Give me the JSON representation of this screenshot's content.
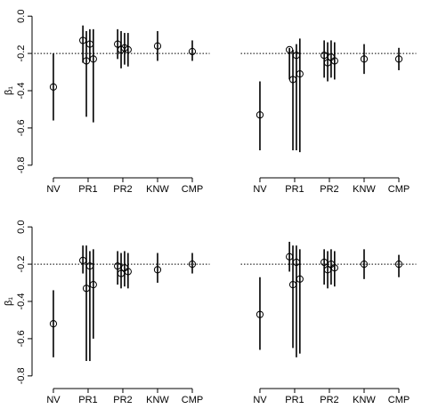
{
  "chart_data": [
    {
      "type": "scatter",
      "ylabel": "β₁",
      "x": [
        1,
        1.85,
        1.95,
        2.05,
        2.15,
        2.85,
        2.95,
        3.05,
        3.15,
        4,
        5
      ],
      "y": [
        -0.38,
        -0.13,
        -0.24,
        -0.15,
        -0.23,
        -0.15,
        -0.18,
        -0.17,
        -0.18,
        -0.16,
        -0.19
      ],
      "low": [
        -0.56,
        -0.25,
        -0.54,
        -0.24,
        -0.57,
        -0.23,
        -0.28,
        -0.26,
        -0.27,
        -0.24,
        -0.24
      ],
      "high": [
        -0.2,
        -0.05,
        -0.08,
        -0.07,
        -0.07,
        -0.07,
        -0.08,
        -0.09,
        -0.09,
        -0.08,
        -0.13
      ],
      "xlim": [
        0.45,
        5.5
      ],
      "xticks": [
        {
          "value": 1,
          "label": "NV"
        },
        {
          "value": 2,
          "label": "PR1"
        },
        {
          "value": 3,
          "label": "PR2"
        },
        {
          "value": 4,
          "label": "KNW"
        },
        {
          "value": 5,
          "label": "CMP"
        }
      ],
      "ylim": [
        -0.82,
        0.02
      ],
      "yticks": [
        {
          "value": 0,
          "label": "0.0"
        },
        -0.2,
        -0.4,
        -0.6,
        -0.8
      ],
      "hline": -0.2
    },
    {
      "type": "scatter",
      "x": [
        1,
        1.85,
        1.95,
        2.05,
        2.15,
        2.85,
        2.95,
        3.05,
        3.15,
        4,
        5
      ],
      "y": [
        -0.53,
        -0.18,
        -0.34,
        -0.21,
        -0.31,
        -0.21,
        -0.25,
        -0.22,
        -0.24,
        -0.23,
        -0.23
      ],
      "low": [
        -0.72,
        -0.34,
        -0.72,
        -0.72,
        -0.73,
        -0.33,
        -0.35,
        -0.33,
        -0.34,
        -0.31,
        -0.29
      ],
      "high": [
        -0.35,
        -0.17,
        -0.18,
        -0.15,
        -0.12,
        -0.13,
        -0.14,
        -0.13,
        -0.14,
        -0.15,
        -0.17
      ],
      "xlim": [
        0.45,
        5.5
      ],
      "xticks": [
        {
          "value": 1,
          "label": "NV"
        },
        {
          "value": 2,
          "label": "PR1"
        },
        {
          "value": 3,
          "label": "PR2"
        },
        {
          "value": 4,
          "label": "KNW"
        },
        {
          "value": 5,
          "label": "CMP"
        }
      ],
      "ylim": [
        -0.82,
        0.02
      ],
      "hline": -0.2
    },
    {
      "type": "scatter",
      "ylabel": "β₁",
      "x": [
        1,
        1.85,
        1.95,
        2.05,
        2.15,
        2.85,
        2.95,
        3.05,
        3.15,
        4,
        5
      ],
      "y": [
        -0.52,
        -0.18,
        -0.33,
        -0.21,
        -0.31,
        -0.21,
        -0.25,
        -0.22,
        -0.24,
        -0.23,
        -0.2
      ],
      "low": [
        -0.7,
        -0.25,
        -0.72,
        -0.72,
        -0.6,
        -0.31,
        -0.33,
        -0.32,
        -0.33,
        -0.3,
        -0.25
      ],
      "high": [
        -0.34,
        -0.1,
        -0.1,
        -0.13,
        -0.12,
        -0.13,
        -0.14,
        -0.13,
        -0.14,
        -0.14,
        -0.14
      ],
      "xlim": [
        0.45,
        5.5
      ],
      "xticks": [
        {
          "value": 1,
          "label": "NV"
        },
        {
          "value": 2,
          "label": "PR1"
        },
        {
          "value": 3,
          "label": "PR2"
        },
        {
          "value": 4,
          "label": "KNW"
        },
        {
          "value": 5,
          "label": "CMP"
        }
      ],
      "ylim": [
        -0.82,
        0.02
      ],
      "yticks": [
        {
          "value": 0,
          "label": "0.0"
        },
        -0.2,
        -0.4,
        -0.6,
        -0.8
      ],
      "hline": -0.2
    },
    {
      "type": "scatter",
      "x": [
        1,
        1.85,
        1.95,
        2.05,
        2.15,
        2.85,
        2.95,
        3.05,
        3.15,
        4,
        5
      ],
      "y": [
        -0.47,
        -0.16,
        -0.31,
        -0.19,
        -0.28,
        -0.19,
        -0.23,
        -0.2,
        -0.22,
        -0.2,
        -0.2
      ],
      "low": [
        -0.66,
        -0.24,
        -0.65,
        -0.7,
        -0.68,
        -0.31,
        -0.33,
        -0.31,
        -0.32,
        -0.28,
        -0.27
      ],
      "high": [
        -0.27,
        -0.08,
        -0.1,
        -0.1,
        -0.12,
        -0.12,
        -0.13,
        -0.12,
        -0.13,
        -0.12,
        -0.15
      ],
      "xlim": [
        0.45,
        5.5
      ],
      "xticks": [
        {
          "value": 1,
          "label": "NV"
        },
        {
          "value": 2,
          "label": "PR1"
        },
        {
          "value": 3,
          "label": "PR2"
        },
        {
          "value": 4,
          "label": "KNW"
        },
        {
          "value": 5,
          "label": "CMP"
        }
      ],
      "ylim": [
        -0.82,
        0.02
      ],
      "hline": -0.2
    }
  ]
}
